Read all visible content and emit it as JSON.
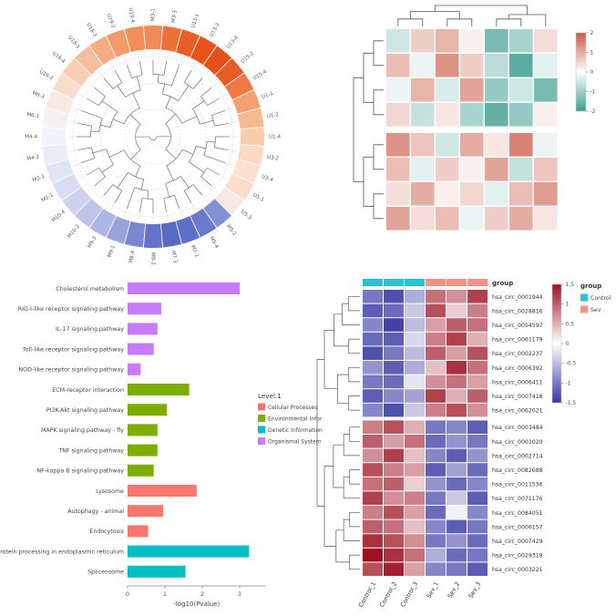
{
  "figure": {
    "background": "#ffffff"
  },
  "chart_data": [
    {
      "id": "panelA",
      "type": "heatmap",
      "subtype": "circular-dendrogram-ring",
      "title": "",
      "legend_position": "none",
      "leaves": [
        {
          "label": "M3-1",
          "color": "#F08A58"
        },
        {
          "label": "M3-3",
          "color": "#EC7038"
        },
        {
          "label": "U13-1",
          "color": "#E75E26"
        },
        {
          "label": "U13-3",
          "color": "#E4541C"
        },
        {
          "label": "U13-4",
          "color": "#E45119"
        },
        {
          "label": "U15-2",
          "color": "#E75C24"
        },
        {
          "label": "U15-4",
          "color": "#EE7942"
        },
        {
          "label": "U1-1",
          "color": "#F4A06F"
        },
        {
          "label": "U1-2",
          "color": "#F7B98F"
        },
        {
          "label": "U1-4",
          "color": "#FACDAD"
        },
        {
          "label": "U3-2",
          "color": "#FBD9C2"
        },
        {
          "label": "U3-4",
          "color": "#FCE2D1"
        },
        {
          "label": "U5-1",
          "color": "#FBDDCB"
        },
        {
          "label": "U5-3",
          "color": "#F6E8E2"
        },
        {
          "label": "M5-2",
          "color": "#8490D4"
        },
        {
          "label": "M5-4",
          "color": "#6C7ACC"
        },
        {
          "label": "M7-1",
          "color": "#5F6EC7"
        },
        {
          "label": "M7-3",
          "color": "#5A69C5"
        },
        {
          "label": "M8-2",
          "color": "#6472C9"
        },
        {
          "label": "M8-4",
          "color": "#7A86CF"
        },
        {
          "label": "M9-1",
          "color": "#9AA4DB"
        },
        {
          "label": "M9-3",
          "color": "#AEB6E2"
        },
        {
          "label": "M10-2",
          "color": "#BFC5E9"
        },
        {
          "label": "M10-4",
          "color": "#CDD2EE"
        },
        {
          "label": "M2-1",
          "color": "#D8DCF2"
        },
        {
          "label": "M2-3",
          "color": "#E1E4F5"
        },
        {
          "label": "M4-2",
          "color": "#EAECF8"
        },
        {
          "label": "M4-4",
          "color": "#F1F2FA"
        },
        {
          "label": "M6-1",
          "color": "#F6F0F0"
        },
        {
          "label": "M6-3",
          "color": "#F8E9E4"
        },
        {
          "label": "U16-2",
          "color": "#F9DDCC"
        },
        {
          "label": "U16-4",
          "color": "#F8CFB5"
        },
        {
          "label": "U18-1",
          "color": "#F6BE9C"
        },
        {
          "label": "U18-3",
          "color": "#F4AC82"
        },
        {
          "label": "U19-2",
          "color": "#F29A68"
        },
        {
          "label": "U19-4",
          "color": "#F18E59"
        }
      ]
    },
    {
      "id": "panelB",
      "type": "heatmap",
      "rows": 8,
      "cols": 7,
      "row_gap_after": 4,
      "matrix": [
        [
          -0.5,
          0.6,
          0.9,
          0.2,
          -1.4,
          -0.9,
          0.4
        ],
        [
          0.8,
          -0.2,
          1.3,
          0.6,
          -0.7,
          -1.7,
          -0.3
        ],
        [
          -0.2,
          0.9,
          -0.4,
          1.1,
          -1.1,
          -0.5,
          -1.4
        ],
        [
          0.5,
          -0.6,
          0.3,
          -0.9,
          -1.6,
          -1.1,
          0.2
        ],
        [
          1.3,
          0.7,
          -0.5,
          1.0,
          0.3,
          1.5,
          -0.2
        ],
        [
          0.8,
          -0.3,
          0.6,
          0.2,
          1.1,
          -0.6,
          0.7
        ],
        [
          0.4,
          1.0,
          0.2,
          0.5,
          -0.3,
          0.8,
          1.2
        ],
        [
          1.1,
          0.4,
          0.8,
          -0.2,
          0.6,
          1.0,
          0.3
        ]
      ],
      "colormap": {
        "negative": "#3E9E92",
        "positive": "#CB5A45",
        "limit": 2
      },
      "legend_ticks": [
        "2",
        "1",
        "0",
        "-1",
        "-2"
      ],
      "legend_position": "right"
    },
    {
      "id": "panelC",
      "type": "bar",
      "orientation": "horizontal",
      "categories": [
        "Cholesterol metabolism",
        "RIG-I-like receptor signaling pathway",
        "IL-17 signaling pathway",
        "Toll-like receptor signaling pathway",
        "NOD-like receptor signaling pathway",
        "ECM-receptor interaction",
        "PI3K-Akt signaling pathway",
        "MAPK signaling pathway - fly",
        "TNF signaling pathway",
        "NF-kappa B signaling pathway",
        "Lysosome",
        "Autophagy - animal",
        "Endocytosis",
        "Protein processing in endoplasmic reticulum",
        "Spliceosome"
      ],
      "values": [
        3.0,
        0.9,
        0.8,
        0.7,
        0.35,
        1.65,
        1.05,
        0.8,
        0.8,
        0.7,
        1.85,
        0.95,
        0.55,
        3.25,
        1.55
      ],
      "groups": [
        "Organismal System",
        "Organismal System",
        "Organismal System",
        "Organismal System",
        "Organismal System",
        "Environmental Infor",
        "Environmental Infor",
        "Environmental Infor",
        "Environmental Infor",
        "Environmental Infor",
        "Cellular Processes",
        "Cellular Processes",
        "Cellular Processes",
        "Genetic Information",
        "Genetic Information"
      ],
      "xlabel": "-log10(Pvalue)",
      "xticks": [
        "0",
        "1",
        "2",
        "3"
      ],
      "xlim": [
        0,
        3.7
      ],
      "legend_title": "Level.1",
      "legend": [
        {
          "label": "Cellular Processes",
          "color": "#F8766D"
        },
        {
          "label": "Environmental Infor",
          "color": "#7CAE00"
        },
        {
          "label": "Genetic Information",
          "color": "#00BFC4"
        },
        {
          "label": "Organismal System",
          "color": "#C77CFF"
        }
      ],
      "legend_position": "right"
    },
    {
      "id": "panelD",
      "type": "heatmap",
      "rows": [
        "hsa_circ_0001944",
        "hsa_circ_0028816",
        "hsa_circ_0054597",
        "hsa_circ_0061179",
        "hsa_circ_0002237",
        "hsa_circ_0006392",
        "hsa_circ_0006411",
        "hsa_circ_0007418",
        "hsa_circ_0062021",
        "hsa_circ_0003484",
        "hsa_circ_0001020",
        "hsa_circ_0002714",
        "hsa_circ_0082688",
        "hsa_circ_0011536",
        "hsa_circ_0071176",
        "hsa_circ_0084051",
        "hsa_circ_0006157",
        "hsa_circ_0007429",
        "hsa_circ_0029318",
        "hsa_circ_0003221"
      ],
      "columns": [
        "Control_1",
        "Control_2",
        "Control_3",
        "Sev_1",
        "Sev_2",
        "Sev_3"
      ],
      "column_groups": [
        "Control",
        "Control",
        "Control",
        "Sev",
        "Sev",
        "Sev"
      ],
      "annotation_title": "group",
      "row_gap_after": 9,
      "matrix": [
        [
          -1.0,
          -1.3,
          -0.6,
          0.9,
          0.7,
          1.2
        ],
        [
          -1.2,
          -1.1,
          -0.4,
          1.1,
          0.3,
          0.8
        ],
        [
          -0.9,
          -1.4,
          -0.5,
          0.6,
          1.0,
          0.9
        ],
        [
          -1.1,
          -1.2,
          -0.3,
          0.8,
          1.2,
          0.5
        ],
        [
          -1.3,
          -1.0,
          -0.5,
          1.0,
          0.6,
          1.1
        ],
        [
          -0.8,
          -1.2,
          -0.6,
          0.4,
          1.3,
          0.9
        ],
        [
          -1.0,
          -1.1,
          -0.2,
          0.7,
          0.9,
          0.6
        ],
        [
          -1.2,
          -0.9,
          -0.7,
          1.2,
          0.5,
          1.0
        ],
        [
          -0.9,
          -1.3,
          -0.4,
          0.8,
          1.1,
          0.7
        ],
        [
          0.8,
          1.1,
          0.5,
          -1.0,
          -0.9,
          -1.2
        ],
        [
          1.0,
          0.6,
          0.9,
          -1.1,
          -0.8,
          -1.0
        ],
        [
          0.7,
          1.2,
          0.4,
          -0.9,
          -1.2,
          -0.8
        ],
        [
          1.1,
          0.8,
          0.6,
          -1.2,
          -0.7,
          -1.1
        ],
        [
          0.9,
          1.0,
          0.3,
          -0.8,
          -1.1,
          -0.9
        ],
        [
          1.2,
          0.7,
          0.8,
          -1.0,
          -0.4,
          -1.2
        ],
        [
          0.8,
          1.1,
          0.6,
          -1.1,
          -0.1,
          -0.9
        ],
        [
          1.0,
          0.9,
          0.4,
          -0.9,
          -1.2,
          -1.0
        ],
        [
          1.3,
          1.1,
          0.7,
          -1.0,
          -0.8,
          -1.1
        ],
        [
          1.5,
          1.3,
          0.9,
          -0.6,
          -1.1,
          -1.0
        ],
        [
          1.1,
          1.4,
          0.6,
          -0.9,
          -1.0,
          -1.2
        ]
      ],
      "colormap": {
        "negative": "#3535A3",
        "positive": "#9E1021",
        "limit": 1.5
      },
      "legend_ticks": [
        "1.5",
        "1",
        "0.5",
        "0",
        "-0.5",
        "-1",
        "-1.5"
      ],
      "legend_title": "group",
      "legend_items": [
        {
          "label": "Control",
          "color": "#25C3D4"
        },
        {
          "label": "Sev",
          "color": "#F8908A"
        }
      ],
      "legend_position": "right"
    }
  ]
}
